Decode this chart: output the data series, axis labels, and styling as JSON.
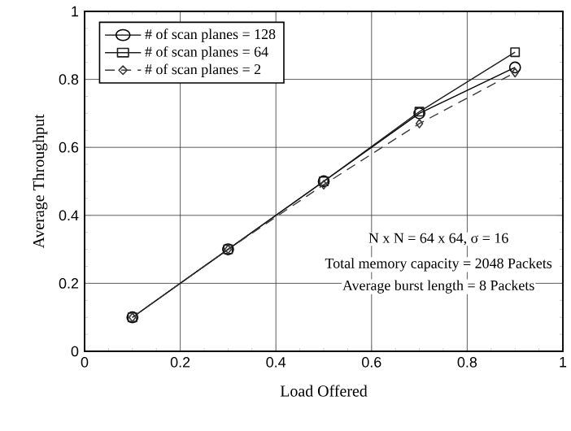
{
  "chart_data": {
    "type": "line",
    "xlabel": "Load Offered",
    "ylabel": "Average Throughput",
    "x": [
      0.1,
      0.3,
      0.5,
      0.7,
      0.9
    ],
    "series": [
      {
        "name": "# of scan planes = 128",
        "color": "#000000",
        "marker": "circle",
        "line_style": "solid",
        "values": [
          0.1,
          0.3,
          0.5,
          0.7,
          0.835
        ]
      },
      {
        "name": "# of scan planes = 64",
        "color": "#1e1e1e",
        "marker": "square",
        "line_style": "solid",
        "values": [
          0.1,
          0.3,
          0.5,
          0.705,
          0.88
        ]
      },
      {
        "name": "# of scan planes = 2",
        "color": "#3a3a3a",
        "marker": "diamond",
        "line_style": "dashed",
        "values": [
          0.1,
          0.3,
          0.49,
          0.67,
          0.82
        ]
      }
    ],
    "xlim": [
      0,
      1
    ],
    "ylim": [
      0,
      1
    ],
    "xticks": [
      0,
      0.2,
      0.4,
      0.6,
      0.8,
      1
    ],
    "yticks": [
      0,
      0.2,
      0.4,
      0.6,
      0.8,
      1
    ],
    "grid": true,
    "legend": "top left",
    "annotations": [
      "N x N = 64 x 64,  σ = 16",
      "Total  memory capacity = 2048 Packets",
      "Average burst length = 8 Packets"
    ]
  }
}
